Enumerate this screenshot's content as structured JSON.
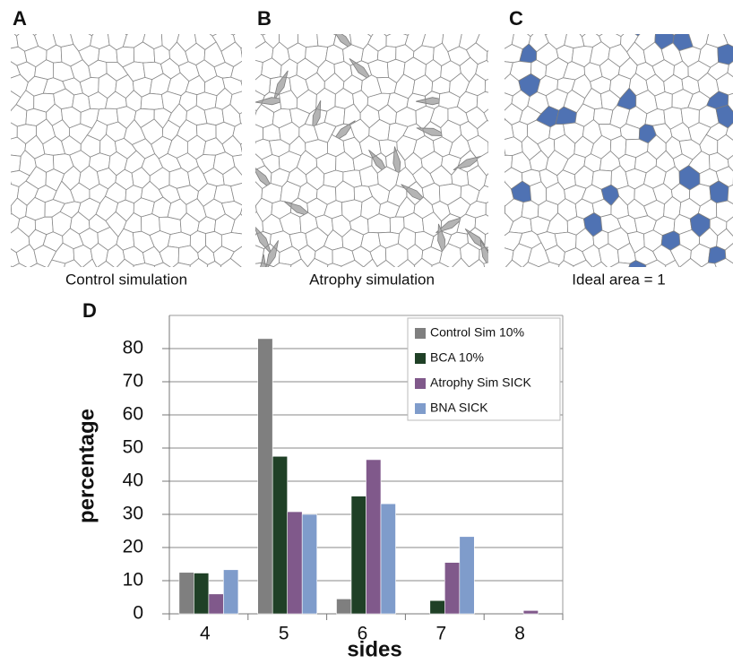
{
  "panels": [
    {
      "letter": "A",
      "caption": "Control simulation"
    },
    {
      "letter": "B",
      "caption": "Atrophy simulation"
    },
    {
      "letter": "C",
      "caption": "Ideal area = 1"
    }
  ],
  "chart_data": {
    "type": "bar",
    "panel_letter": "D",
    "x_label": "sides",
    "y_label": "percentage",
    "categories": [
      "4",
      "5",
      "6",
      "7",
      "8"
    ],
    "series": [
      {
        "name": "Control Sim 10%",
        "color": "#7f7f7f",
        "values": [
          12.5,
          83,
          4.5,
          0,
          0
        ]
      },
      {
        "name": "BCA 10%",
        "color": "#1f4026",
        "values": [
          12.3,
          47.5,
          35.5,
          4,
          0
        ]
      },
      {
        "name": "Atrophy Sim SICK",
        "color": "#80598b",
        "values": [
          6,
          30.8,
          46.5,
          15.5,
          1
        ]
      },
      {
        "name": "BNA SICK",
        "color": "#7f9ccb",
        "values": [
          13.3,
          30,
          33.2,
          23.3,
          0
        ]
      }
    ],
    "ylim": [
      0,
      90
    ],
    "yticks": [
      0,
      10,
      20,
      30,
      40,
      50,
      60,
      70,
      80
    ],
    "grid": true,
    "legend": "top-right"
  }
}
